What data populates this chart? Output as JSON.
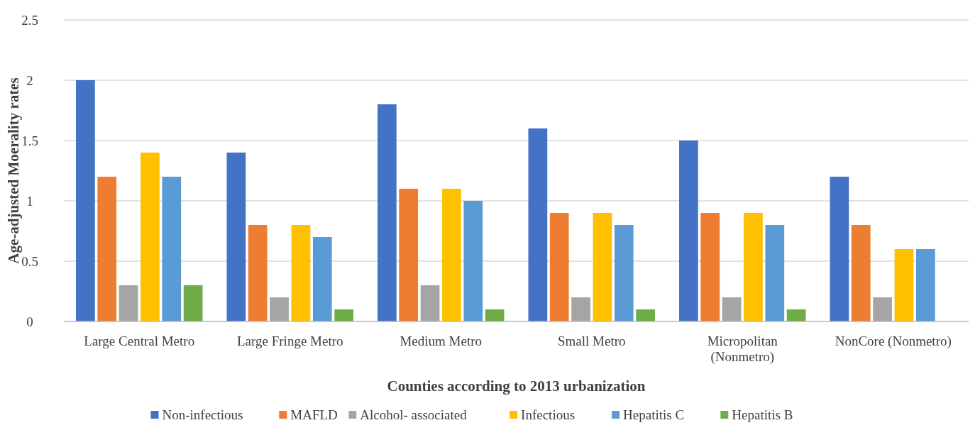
{
  "chart_data": {
    "type": "bar",
    "xlabel": "Counties according to 2013 urbanization",
    "ylabel": "Age-adjusted Moerality rates",
    "categories": [
      "Large Central Metro",
      "Large Fringe Metro",
      "Medium Metro",
      "Small Metro",
      "Micropolitan (Nonmetro)",
      "NonCore (Nonmetro)"
    ],
    "series": [
      {
        "name": "Non-infectious",
        "color": "#4472c4",
        "values": [
          2.0,
          1.4,
          1.8,
          1.6,
          1.5,
          1.2
        ]
      },
      {
        "name": "MAFLD",
        "color": "#ed7d31",
        "values": [
          1.2,
          0.8,
          1.1,
          0.9,
          0.9,
          0.8
        ]
      },
      {
        "name": "Alcohol- associated",
        "color": "#a5a5a5",
        "values": [
          0.3,
          0.2,
          0.3,
          0.2,
          0.2,
          0.2
        ]
      },
      {
        "name": "Infectious",
        "color": "#ffc000",
        "values": [
          1.4,
          0.8,
          1.1,
          0.9,
          0.9,
          0.6
        ]
      },
      {
        "name": "Hepatitis C",
        "color": "#5b9bd5",
        "values": [
          1.2,
          0.7,
          1.0,
          0.8,
          0.8,
          0.6
        ]
      },
      {
        "name": "Hepatitis B",
        "color": "#70ad47",
        "values": [
          0.3,
          0.1,
          0.1,
          0.1,
          0.1,
          null
        ]
      }
    ],
    "ylim": [
      0,
      2.5
    ],
    "yticks": [
      0,
      0.5,
      1,
      1.5,
      2,
      2.5
    ],
    "grid": "y",
    "legend": "bottom"
  }
}
